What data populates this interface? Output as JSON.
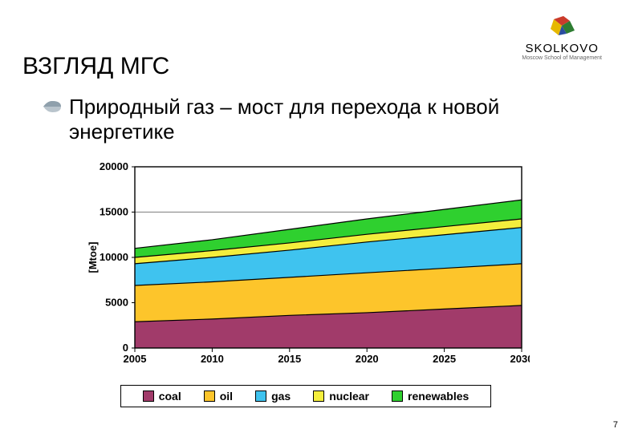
{
  "logo": {
    "text": "SKOLKOVO",
    "subtitle": "Moscow School of Management"
  },
  "title": "ВЗГЛЯД МГС",
  "subtitle": "Природный газ – мост для перехода к новой энергетике",
  "page_number": "7",
  "chart": {
    "type": "area-stacked",
    "background_color": "#ffffff",
    "grid_color": "#000000",
    "grid_stroke": 0.6,
    "axis_label": "[Mtoe]",
    "axis_label_fontsize": 13,
    "axis_label_bold": true,
    "tick_fontsize": 13,
    "tick_bold": true,
    "x": {
      "ticks": [
        "2005",
        "2010",
        "2015",
        "2020",
        "2025",
        "2030"
      ]
    },
    "y": {
      "min": 0,
      "max": 20000,
      "ticks": [
        0,
        5000,
        10000,
        15000,
        20000
      ]
    },
    "series": [
      {
        "key": "coal",
        "label": "coal",
        "color": "#a13b6a",
        "values": [
          2900,
          3200,
          3600,
          3900,
          4300,
          4700
        ]
      },
      {
        "key": "oil",
        "label": "oil",
        "color": "#fdc52b",
        "values": [
          4000,
          4100,
          4200,
          4400,
          4500,
          4600
        ]
      },
      {
        "key": "gas",
        "label": "gas",
        "color": "#3fc3ef",
        "values": [
          2400,
          2700,
          3000,
          3400,
          3700,
          4000
        ]
      },
      {
        "key": "nuclear",
        "label": "nuclear",
        "color": "#f4ee3d",
        "values": [
          700,
          750,
          800,
          850,
          900,
          950
        ]
      },
      {
        "key": "renewables",
        "label": "renewables",
        "color": "#2fd02f",
        "values": [
          1000,
          1200,
          1500,
          1700,
          1900,
          2100
        ]
      }
    ],
    "line_stroke": "#000000",
    "line_width": 1.2
  },
  "legend": {
    "border_color": "#000000",
    "font_size": 14,
    "bold": true,
    "items": [
      {
        "label": "coal",
        "color": "#a13b6a"
      },
      {
        "label": "oil",
        "color": "#fdc52b"
      },
      {
        "label": "gas",
        "color": "#3fc3ef"
      },
      {
        "label": "nuclear",
        "color": "#f4ee3d"
      },
      {
        "label": "renewables",
        "color": "#2fd02f"
      }
    ]
  }
}
